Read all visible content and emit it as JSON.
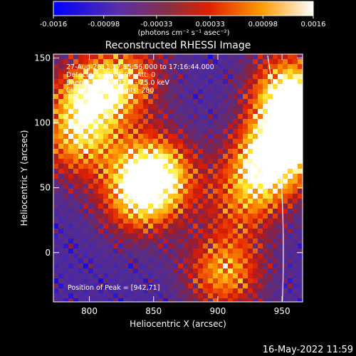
{
  "chart_data": {
    "type": "heatmap",
    "title": "Reconstructed RHESSI Image",
    "xlabel": "Heliocentric X (arcsec)",
    "ylabel": "Heliocentric Y (arcsec)",
    "xlim": [
      772,
      966
    ],
    "ylim": [
      -38,
      153
    ],
    "x_ticks": [
      800,
      850,
      900,
      950
    ],
    "y_ticks": [
      0,
      50,
      100,
      150
    ],
    "colorbar": {
      "min": -0.0016,
      "max": 0.0016,
      "ticks": [
        "-0.0016",
        "-0.00098",
        "-0.00033",
        "0.00033",
        "0.00098",
        "0.0016"
      ],
      "unit_label": "(photons cm⁻² s⁻¹ asec⁻²)"
    },
    "annotations": [
      "27-Aug-2011 17:15:56.000 to 17:16:44.000",
      "Detectors: 3F 6F 9F, Att: 0",
      "Energy Range: 12.0 - 25.0 keV",
      "Clean     Total counts: 280"
    ],
    "peak_label": "Position of Peak = [942,71]",
    "limb": {
      "center_x": 0,
      "center_y": 0,
      "radius_arcsec": 951
    },
    "sources": [
      {
        "x": 942,
        "y": 71,
        "amp": 1.0
      },
      {
        "x": 962,
        "y": 100,
        "amp": 0.85
      },
      {
        "x": 955,
        "y": 128,
        "amp": 0.75
      },
      {
        "x": 852,
        "y": 62,
        "amp": 0.9
      },
      {
        "x": 838,
        "y": 42,
        "amp": 0.7
      },
      {
        "x": 800,
        "y": 120,
        "amp": 0.8
      },
      {
        "x": 790,
        "y": 85,
        "amp": 0.65
      },
      {
        "x": 905,
        "y": -15,
        "amp": 0.75
      },
      {
        "x": 830,
        "y": 135,
        "amp": 0.6
      },
      {
        "x": 920,
        "y": 40,
        "amp": 0.5
      }
    ]
  },
  "footer": {
    "timestamp": "16-May-2022 11:59"
  }
}
